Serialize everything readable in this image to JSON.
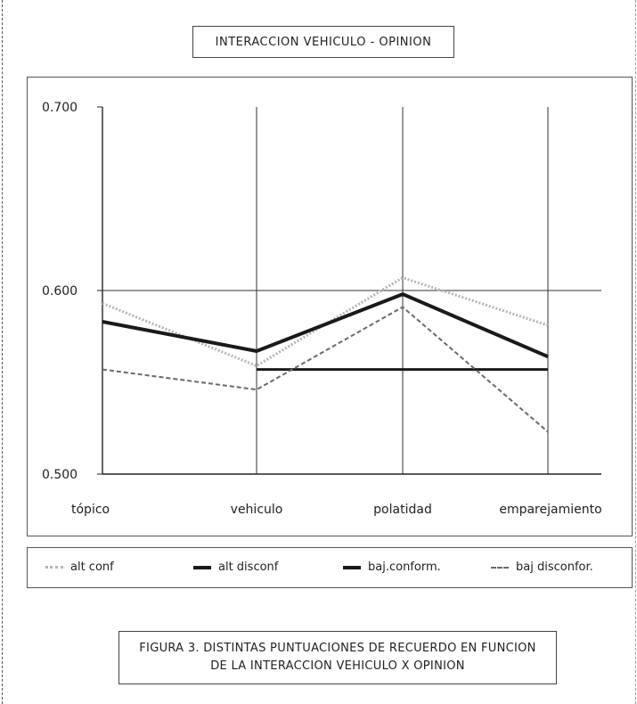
{
  "title": "INTERACCION VEHICULO - OPINION",
  "caption": {
    "line1": "FIGURA 3. DISTINTAS PUNTUACIONES DE RECUERDO EN FUNCION",
    "line2": "DE LA INTERACCION VEHICULO X OPINION"
  },
  "colors": {
    "alt_conf": "#b5b5b5",
    "alt_disconf": "#1a1a1a",
    "baj_conform": "#1a1a1a",
    "baj_disconfor": "#6a6a6a",
    "axis": "#222222",
    "grid": "#333333"
  },
  "chart_data": {
    "type": "line",
    "title": "INTERACCION VEHICULO - OPINION",
    "categories": [
      "tópico",
      "vehiculo",
      "polatidad",
      "emparejamiento"
    ],
    "y_ticks": [
      "0.700",
      "0.600",
      "0.500"
    ],
    "ylim": [
      0.5,
      0.7
    ],
    "grid": true,
    "legend_position": "bottom",
    "series": [
      {
        "name": "alt conf",
        "values": [
          0.593,
          0.559,
          0.607,
          0.581
        ],
        "style": "dotted-light"
      },
      {
        "name": "alt disconf",
        "values": [
          0.583,
          0.567,
          0.598,
          0.564
        ],
        "style": "solid-thick"
      },
      {
        "name": "baj.conform.",
        "values": [
          null,
          0.557,
          0.557,
          0.557
        ],
        "style": "solid-medium"
      },
      {
        "name": "baj disconfor.",
        "values": [
          0.557,
          0.546,
          0.591,
          0.523
        ],
        "style": "dashed"
      }
    ]
  }
}
